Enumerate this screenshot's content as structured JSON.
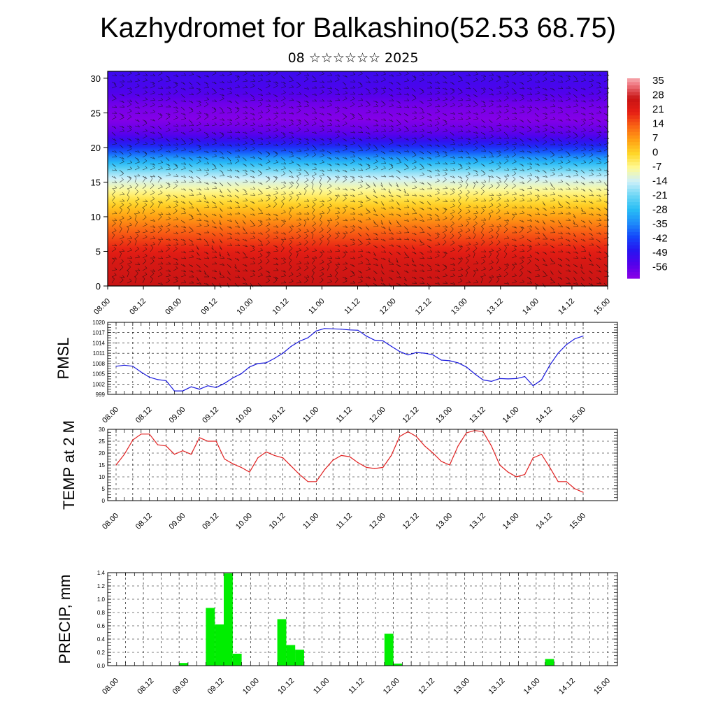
{
  "title": "Kazhydromet for Balkashino(52.53 68.75)",
  "subtitle": "08 ☆☆☆☆☆☆ 2025",
  "colors": {
    "pmsl_line": "#1a1adc",
    "temp_line": "#e02020",
    "precip_bar": "#00ee00",
    "grid": "#000000"
  },
  "chart_data": [
    {
      "type": "heatmap",
      "name": "cross-section",
      "x_tick_labels": [
        "08.00",
        "08.12",
        "09.00",
        "09.12",
        "10.00",
        "10.12",
        "11.00",
        "11.12",
        "12.00",
        "12.12",
        "13.00",
        "13.12",
        "14.00",
        "14.12",
        "15.00"
      ],
      "y_ticks": [
        0,
        5,
        10,
        15,
        20,
        25,
        30
      ],
      "ylim": [
        0,
        31
      ],
      "colorbar_labels": [
        "35",
        "28",
        "21",
        "14",
        "7",
        "0",
        "-7",
        "-14",
        "-21",
        "-28",
        "-35",
        "-42",
        "-49",
        "-56"
      ],
      "colorbar_range": [
        -63,
        38
      ],
      "temperature_profile": {
        "heights": [
          0,
          4,
          8,
          12,
          14,
          16,
          18,
          20,
          22,
          24,
          26,
          28,
          31
        ],
        "values": [
          28,
          24,
          14,
          0,
          -8,
          -16,
          -30,
          -45,
          -57,
          -62,
          -60,
          -55,
          -52
        ]
      }
    },
    {
      "type": "line",
      "name": "pmsl",
      "ylabel": "PMSL",
      "y_tick_labels": [
        "1020",
        "1017",
        "1014",
        "1011",
        "1008",
        "1005",
        "1002",
        "999"
      ],
      "ylim": [
        999,
        1020
      ],
      "x_tick_labels": [
        "08.00",
        "08.12",
        "09.00",
        "09.12",
        "10.00",
        "10.12",
        "11.00",
        "11.12",
        "12.00",
        "12.12",
        "13.00",
        "13.12",
        "14.00",
        "14.12",
        "15.00"
      ],
      "x_hours": [
        0,
        3,
        6,
        9,
        12,
        15,
        18,
        21,
        24,
        27,
        30,
        33,
        36,
        39,
        42,
        45,
        48,
        51,
        54,
        57,
        60,
        63,
        66,
        69,
        72,
        75,
        78,
        81,
        84,
        87,
        90,
        93,
        96,
        99,
        102,
        105,
        108,
        111,
        114,
        117,
        120,
        123,
        126,
        129,
        132,
        135,
        138,
        141,
        144,
        147,
        150,
        153,
        156,
        159,
        162,
        165,
        168
      ],
      "values": [
        1007.2,
        1007.5,
        1007.2,
        1005.5,
        1004.0,
        1003.3,
        1003.0,
        1000.0,
        1000.0,
        1001.2,
        1000.5,
        1001.5,
        1001.0,
        1002.2,
        1003.8,
        1005.0,
        1007.0,
        1008.0,
        1008.2,
        1009.5,
        1011.0,
        1013.0,
        1014.5,
        1015.5,
        1017.5,
        1018.2,
        1018.1,
        1018.0,
        1017.8,
        1017.7,
        1016.0,
        1014.8,
        1014.6,
        1013.0,
        1011.5,
        1010.5,
        1011.2,
        1011.0,
        1010.5,
        1009.0,
        1008.8,
        1008.2,
        1007.0,
        1005.0,
        1003.2,
        1002.8,
        1003.6,
        1003.5,
        1003.6,
        1004.2,
        1001.5,
        1003.2,
        1007.5,
        1011.0,
        1013.5,
        1015.2,
        1016.0
      ]
    },
    {
      "type": "line",
      "name": "temp",
      "ylabel": "TEMP at 2 M",
      "y_tick_labels": [
        "30",
        "25",
        "20",
        "15",
        "10",
        "5",
        "0"
      ],
      "ylim": [
        0,
        30
      ],
      "x_tick_labels": [
        "08.00",
        "08.12",
        "09.00",
        "09.12",
        "10.00",
        "10.12",
        "11.00",
        "11.12",
        "12.00",
        "12.12",
        "13.00",
        "13.12",
        "14.00",
        "14.12",
        "15.00"
      ],
      "x_hours": [
        0,
        3,
        6,
        9,
        12,
        15,
        18,
        21,
        24,
        27,
        30,
        33,
        36,
        39,
        42,
        45,
        48,
        51,
        54,
        57,
        60,
        63,
        66,
        69,
        72,
        75,
        78,
        81,
        84,
        87,
        90,
        93,
        96,
        99,
        102,
        105,
        108,
        111,
        114,
        117,
        120,
        123,
        126,
        129,
        132,
        135,
        138,
        141,
        144,
        147,
        150,
        153,
        156,
        159,
        162,
        165,
        168
      ],
      "values": [
        15,
        19.5,
        25.5,
        28,
        28,
        23.5,
        23,
        19.5,
        21,
        19.5,
        26.5,
        25,
        25,
        17.5,
        15.5,
        14,
        12,
        18,
        20.5,
        19,
        18,
        14.5,
        11,
        8,
        8,
        13,
        17,
        19,
        18.5,
        16,
        14,
        13.5,
        14,
        19,
        27,
        29,
        27,
        23,
        20,
        16.5,
        15,
        23,
        28.5,
        29.5,
        29,
        23,
        15,
        12,
        10,
        11,
        18,
        19.5,
        14,
        8,
        8,
        5,
        3.5
      ]
    },
    {
      "type": "bar",
      "name": "precip",
      "ylabel": "PRECIP, mm",
      "y_tick_labels": [
        "1.4",
        "1.2",
        "1.0",
        "0.8",
        "0.6",
        "0.4",
        "0.2",
        "0.0"
      ],
      "ylim": [
        0,
        1.4
      ],
      "x_tick_labels": [
        "08.00",
        "08.12",
        "09.00",
        "09.12",
        "10.00",
        "10.12",
        "11.00",
        "11.12",
        "12.00",
        "12.12",
        "13.00",
        "13.12",
        "14.00",
        "14.12",
        "15.00"
      ],
      "bar_hours": [
        24,
        33,
        36,
        39,
        42,
        57,
        60,
        63,
        93,
        96,
        147
      ],
      "values": [
        0.04,
        0.87,
        0.62,
        1.39,
        0.18,
        0.7,
        0.31,
        0.24,
        0.48,
        0.03,
        0.1
      ]
    }
  ]
}
